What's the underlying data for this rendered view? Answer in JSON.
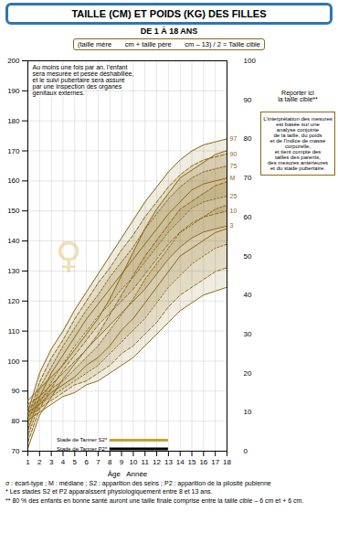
{
  "chart_data": {
    "type": "line",
    "title": "TAILLE (CM) ET POIDS (KG) DES FILLES",
    "subtitle": "DE 1 À 18 ANS",
    "x_label": "Âge   Année",
    "x": [
      1,
      2,
      3,
      4,
      5,
      6,
      7,
      8,
      9,
      10,
      11,
      12,
      13,
      14,
      15,
      16,
      17,
      18
    ],
    "xlim": [
      1,
      18
    ],
    "xticks": [
      1,
      2,
      3,
      4,
      5,
      6,
      7,
      8,
      9,
      10,
      11,
      12,
      13,
      14,
      15,
      16,
      17,
      18
    ],
    "ylim": [
      70,
      200
    ],
    "yticks": [
      70,
      80,
      90,
      100,
      110,
      120,
      130,
      140,
      150,
      160,
      170,
      180,
      190,
      200
    ],
    "y2lim": [
      0,
      100
    ],
    "y2ticks": [
      0,
      10,
      20,
      30,
      40,
      50,
      60,
      70,
      80,
      90,
      100
    ],
    "grid": true,
    "series": [
      {
        "name": "3",
        "color": "#8B6914",
        "line_style": "solid",
        "values": [
          71,
          82,
          88,
          94,
          99,
          104,
          108,
          112,
          116,
          120,
          124,
          129,
          134,
          138,
          141,
          143,
          144,
          145
        ]
      },
      {
        "name": "10",
        "color": "#8B6914",
        "line_style": "dashed",
        "values": [
          73,
          84,
          91,
          97,
          102,
          107,
          112,
          116,
          120,
          124,
          129,
          134,
          139,
          143,
          146,
          148,
          149,
          150
        ]
      },
      {
        "name": "25",
        "color": "#8B6914",
        "line_style": "dotted",
        "values": [
          75,
          86,
          93,
          99,
          105,
          110,
          115,
          119,
          124,
          128,
          133,
          138,
          143,
          147,
          151,
          153,
          154,
          155
        ]
      },
      {
        "name": "M",
        "color": "#8B6914",
        "line_style": "solid",
        "values": [
          77,
          88,
          96,
          102,
          108,
          114,
          119,
          124,
          129,
          134,
          139,
          144,
          149,
          153,
          157,
          159,
          160,
          161
        ]
      },
      {
        "name": "75",
        "color": "#8B6914",
        "line_style": "dotted",
        "values": [
          79,
          91,
          98,
          105,
          111,
          117,
          122,
          128,
          133,
          138,
          144,
          149,
          154,
          158,
          161,
          163,
          164,
          165
        ]
      },
      {
        "name": "90",
        "color": "#8B6914",
        "line_style": "dashed",
        "values": [
          81,
          93,
          101,
          107,
          114,
          120,
          126,
          131,
          137,
          142,
          148,
          153,
          158,
          162,
          165,
          167,
          168,
          169
        ]
      },
      {
        "name": "97",
        "color": "#8B6914",
        "line_style": "solid",
        "values": [
          83,
          96,
          104,
          110,
          117,
          123,
          129,
          135,
          141,
          147,
          153,
          158,
          163,
          167,
          170,
          172,
          173,
          174
        ]
      },
      {
        "axis": "y2",
        "color": "#8B6914",
        "line_style": "solid",
        "values": [
          8,
          10,
          12,
          14,
          15,
          17,
          18,
          20,
          22,
          24,
          27,
          30,
          33,
          36,
          38,
          40,
          41,
          42
        ]
      },
      {
        "axis": "y2",
        "color": "#8B6914",
        "line_style": "dashed",
        "values": [
          9,
          11,
          13,
          15,
          17,
          18,
          20,
          22,
          25,
          27,
          30,
          33,
          37,
          40,
          42,
          44,
          46,
          47
        ]
      },
      {
        "axis": "y2",
        "color": "#8B6914",
        "line_style": "dotted",
        "values": [
          9,
          12,
          14,
          16,
          18,
          20,
          22,
          25,
          28,
          31,
          34,
          38,
          42,
          45,
          48,
          50,
          52,
          53
        ]
      },
      {
        "axis": "y2",
        "color": "#8B6914",
        "line_style": "solid",
        "values": [
          10,
          12,
          15,
          17,
          19,
          22,
          24,
          27,
          31,
          34,
          38,
          42,
          46,
          50,
          52,
          54,
          56,
          57
        ]
      },
      {
        "axis": "y2",
        "color": "#8B6914",
        "line_style": "dotted",
        "values": [
          11,
          13,
          16,
          18,
          21,
          24,
          27,
          31,
          35,
          39,
          44,
          48,
          52,
          56,
          58,
          60,
          62,
          63
        ]
      },
      {
        "axis": "y2",
        "color": "#8B6914",
        "line_style": "dashed",
        "values": [
          12,
          14,
          17,
          20,
          23,
          26,
          30,
          35,
          40,
          45,
          50,
          54,
          58,
          62,
          64,
          66,
          68,
          69
        ]
      },
      {
        "axis": "y2",
        "color": "#8B6914",
        "line_style": "solid",
        "values": [
          13,
          16,
          19,
          22,
          26,
          30,
          34,
          39,
          45,
          51,
          57,
          62,
          66,
          70,
          72,
          74,
          76,
          77
        ]
      }
    ],
    "tanner": [
      {
        "label": "Stade de Tanner S2*",
        "range": [
          8,
          13
        ],
        "color": "#c8a030"
      },
      {
        "label": "Stade de Tanner P2*",
        "range": [
          8,
          13
        ],
        "color": "#000000"
      }
    ],
    "symbol": "♀",
    "note": "Au moins une fois par an, l’enfant\nsera mesurée et pesée déshabillée,\net le suivi pubertaire sera assuré\npar une inspection des organes\ngénitaux externes.",
    "formula": "(taille mère       cm + taille père       cm – 13) / 2 = Taille cible",
    "right_label": "Reporter ici\nla taille cible**",
    "info_text": "L'interprétation des mesures\nest basée sur une\nanalyse conjointe\nde la taille, du poids\net de l'indice de masse\ncorporelle,\net tient compte des\ntailles des parents,\ndes mesures antérieures\net du stade pubertaire.",
    "footnotes": [
      "σ : écart-type ; M : médiane ; S2 : apparition des seins ; P2 : apparition de la pilosité pubienne",
      "* Les stades S2 et P2 apparaîssent physiologiquement entre 8 et 13 ans.",
      "** 80 % des enfants en bonne santé auront une taille finale comprise entre la taille cible – 6 cm et + 6 cm."
    ]
  }
}
